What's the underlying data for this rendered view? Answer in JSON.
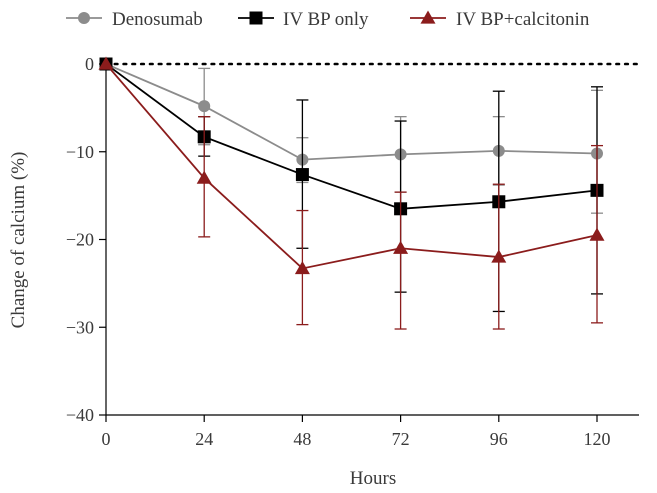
{
  "chart_data": {
    "type": "line",
    "xlabel": "Hours",
    "ylabel": "Change of calcium (%)",
    "x": [
      0,
      24,
      48,
      72,
      96,
      120
    ],
    "xlim": [
      0,
      130
    ],
    "ylim": [
      -40,
      5
    ],
    "xticks": [
      0,
      24,
      48,
      72,
      96,
      120
    ],
    "xtick_labels": [
      "0",
      "24",
      "48",
      "72",
      "96",
      "120"
    ],
    "yticks": [
      0,
      -10,
      -20,
      -30,
      -40
    ],
    "ytick_labels": [
      "0",
      "−10",
      "−20",
      "−30",
      "−40"
    ],
    "reference_line": {
      "y": 0,
      "style": "dotted"
    },
    "legend_position": "top",
    "series": [
      {
        "name": "Denosumab",
        "marker": "circle",
        "color": "#8c8c8c",
        "values": [
          0,
          -4.8,
          -10.9,
          -10.3,
          -9.9,
          -10.2
        ],
        "err_upper": [
          0,
          -0.5,
          -8.4,
          -6.0,
          -6.0,
          -3.0
        ],
        "err_lower": [
          0,
          -9.2,
          -13.5,
          -14.6,
          -13.8,
          -17.0
        ]
      },
      {
        "name": "IV BP only",
        "marker": "square",
        "color": "#000000",
        "values": [
          0,
          -8.3,
          -12.6,
          -16.5,
          -15.7,
          -14.4
        ],
        "err_upper": [
          0,
          -6.0,
          -4.1,
          -6.5,
          -3.1,
          -2.6
        ],
        "err_lower": [
          0,
          -10.5,
          -21.0,
          -26.0,
          -28.2,
          -26.2
        ]
      },
      {
        "name": "IV BP+calcitonin",
        "marker": "triangle",
        "color": "#8b1c1c",
        "values": [
          0,
          -13.0,
          -23.3,
          -21.0,
          -22.0,
          -19.5
        ],
        "err_upper": [
          0,
          -6.0,
          -16.7,
          -14.6,
          -13.7,
          -9.3
        ],
        "err_lower": [
          0,
          -19.7,
          -29.7,
          -30.2,
          -30.2,
          -29.5
        ]
      }
    ]
  }
}
